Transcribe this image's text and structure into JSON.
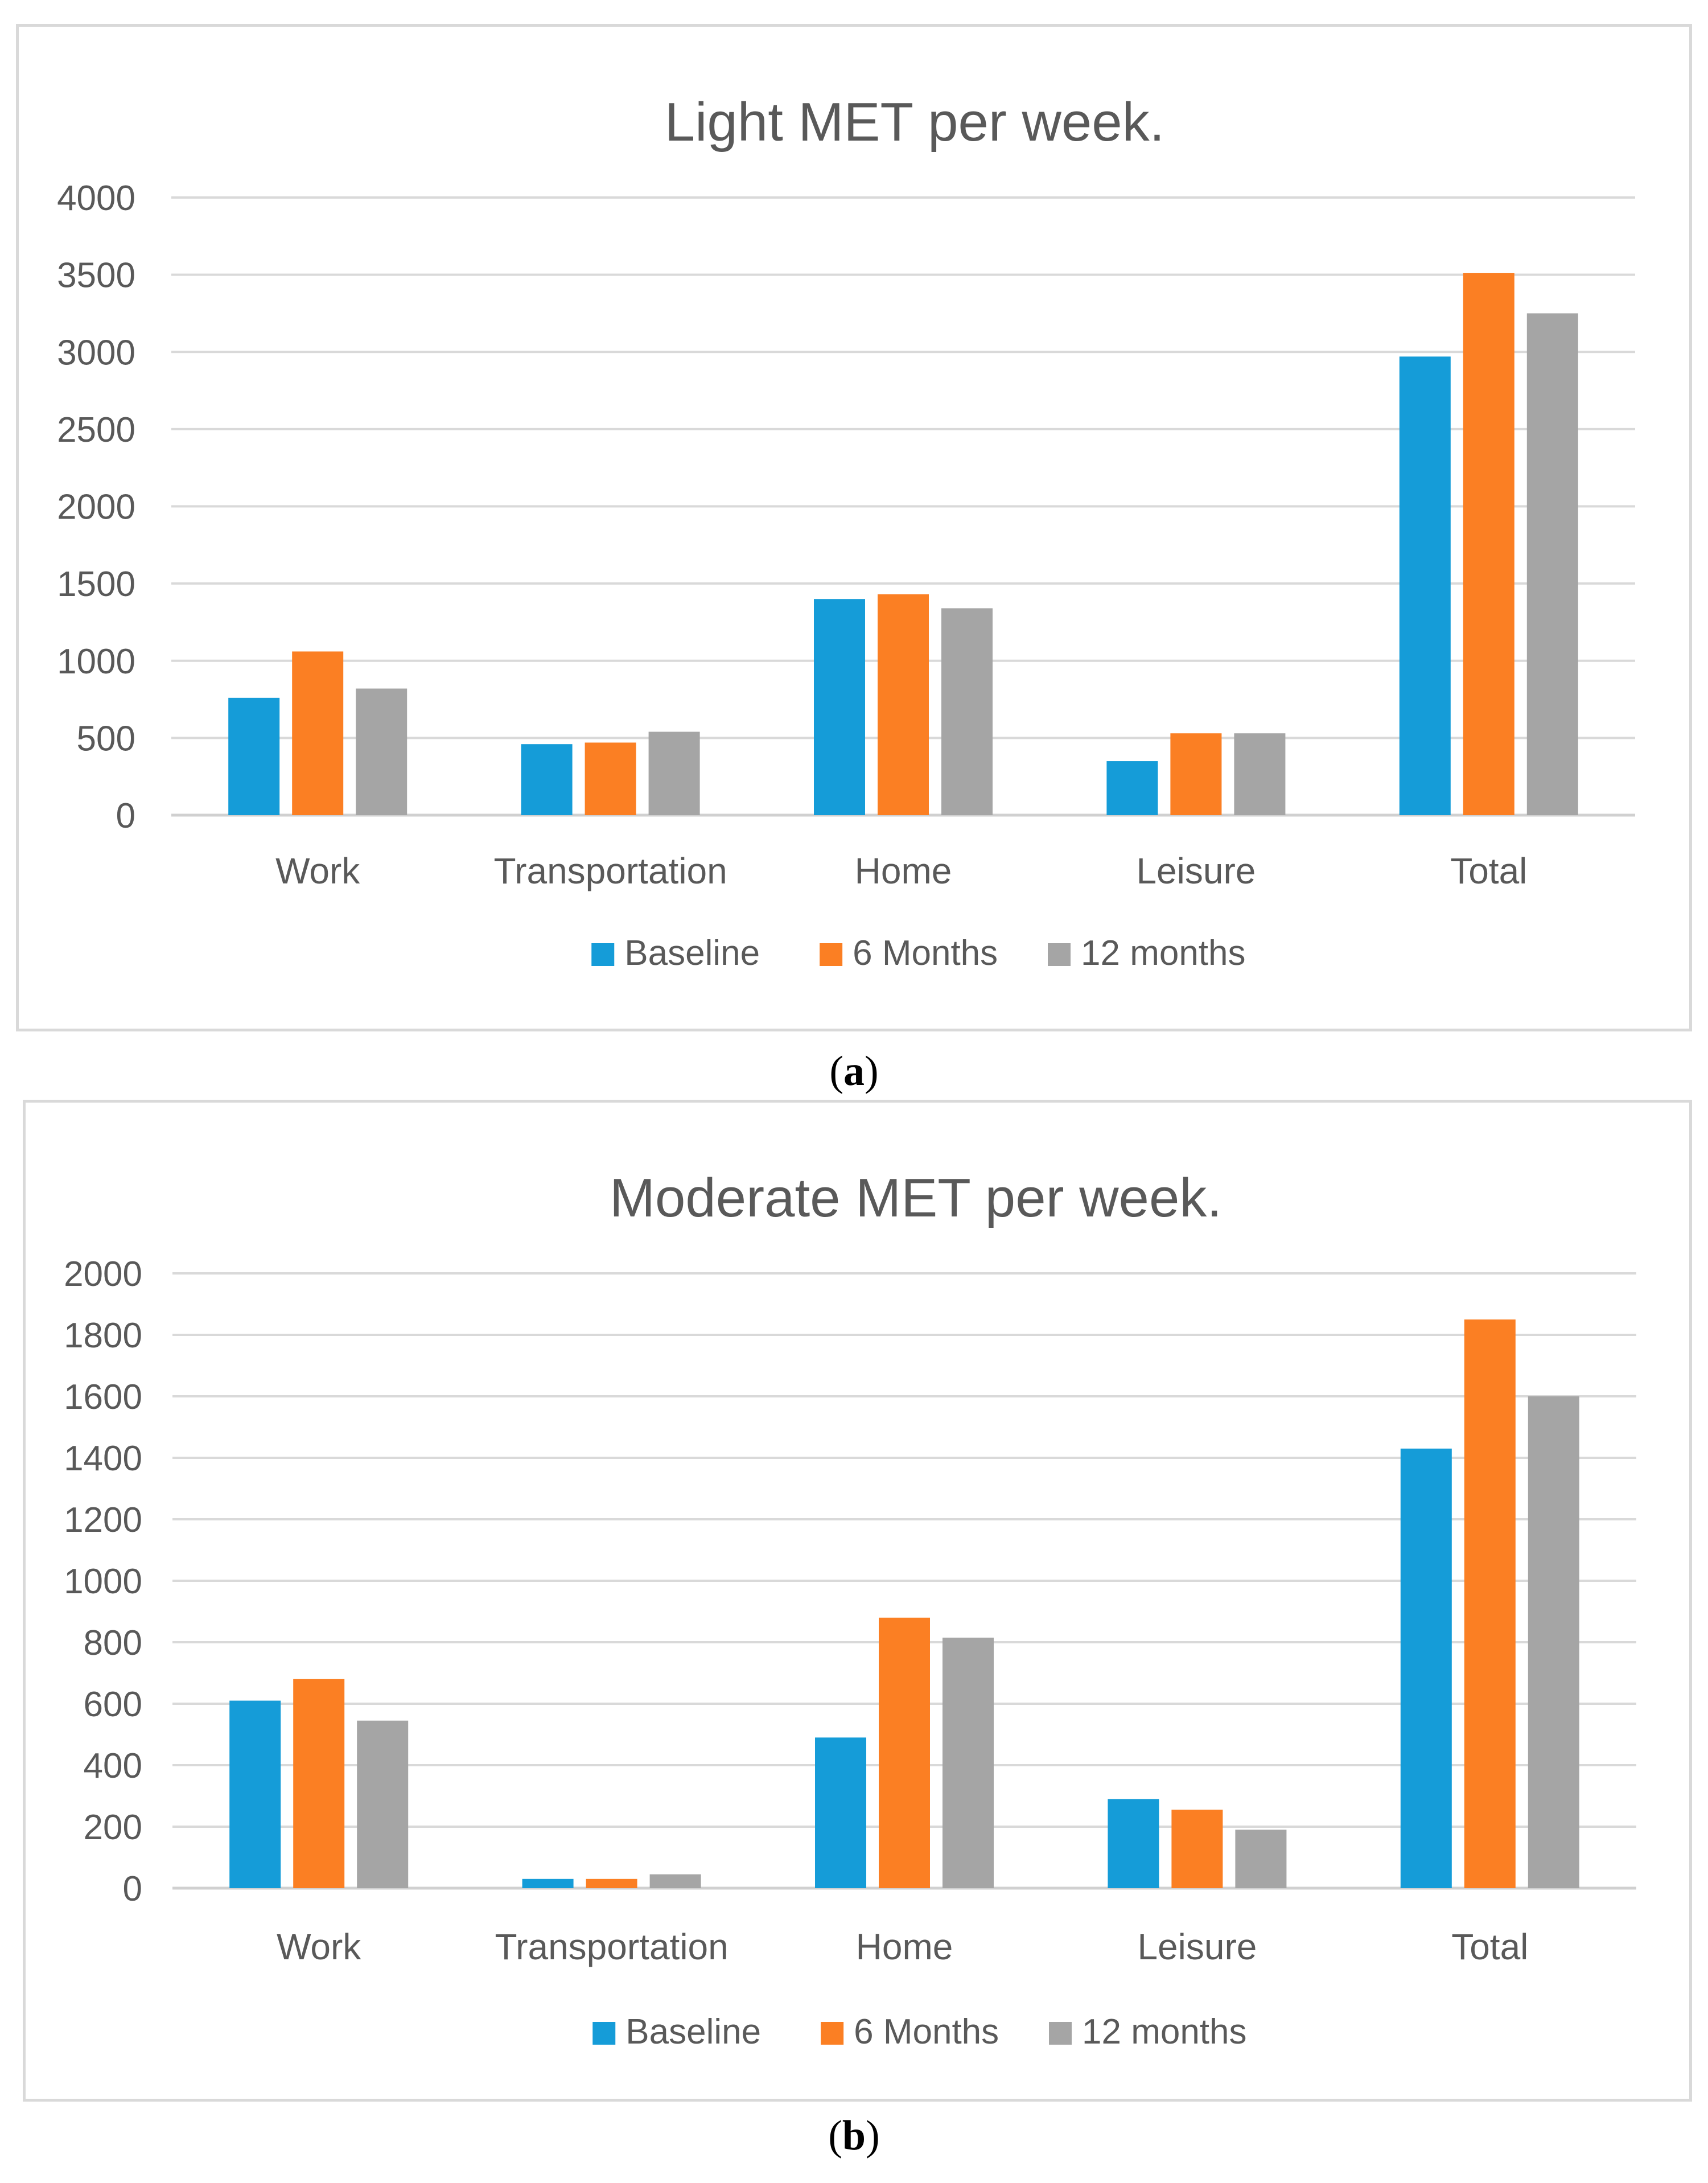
{
  "chart_data": [
    {
      "type": "bar",
      "title": "Light MET per week.",
      "categories": [
        "Work",
        "Transportation",
        "Home",
        "Leisure",
        "Total"
      ],
      "series": [
        {
          "name": "Baseline",
          "values": [
            760,
            460,
            1400,
            350,
            2970
          ]
        },
        {
          "name": "6 Months",
          "values": [
            1060,
            470,
            1430,
            530,
            3510
          ]
        },
        {
          "name": "12 months",
          "values": [
            820,
            540,
            1340,
            530,
            3250
          ]
        }
      ],
      "ylim": [
        0,
        4000
      ],
      "yticks": [
        0,
        500,
        1000,
        1500,
        2000,
        2500,
        3000,
        3500,
        4000
      ],
      "xlabel": "",
      "ylabel": "",
      "grid": true,
      "legend": "bottom-center"
    },
    {
      "type": "bar",
      "title": "Moderate MET per week.",
      "categories": [
        "Work",
        "Transportation",
        "Home",
        "Leisure",
        "Total"
      ],
      "series": [
        {
          "name": "Baseline",
          "values": [
            610,
            30,
            490,
            290,
            1430
          ]
        },
        {
          "name": "6 Months",
          "values": [
            680,
            30,
            880,
            255,
            1850
          ]
        },
        {
          "name": "12 months",
          "values": [
            545,
            45,
            815,
            190,
            1600
          ]
        }
      ],
      "ylim": [
        0,
        2000
      ],
      "yticks": [
        0,
        200,
        400,
        600,
        800,
        1000,
        1200,
        1400,
        1600,
        1800,
        2000
      ],
      "xlabel": "",
      "ylabel": "",
      "grid": true,
      "legend": "bottom-center"
    }
  ],
  "colors": {
    "Baseline": "#159cd8",
    "6 Months": "#fb7f23",
    "12 months": "#a5a5a5"
  },
  "captions": {
    "a": "a",
    "b": "b"
  }
}
